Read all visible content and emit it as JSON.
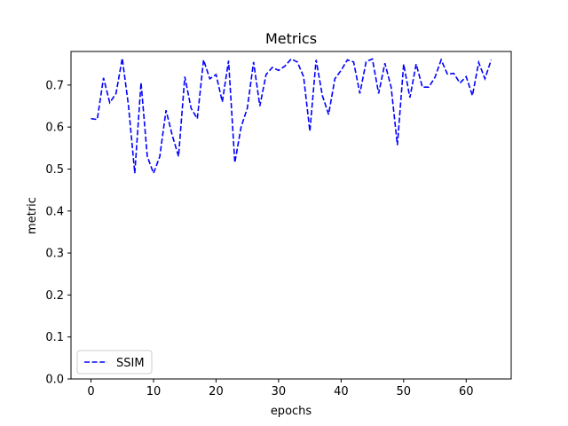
{
  "chart_data": {
    "type": "line",
    "title": "Metrics",
    "xlabel": "epochs",
    "ylabel": "metric",
    "xlim": [
      -3.2,
      67.2
    ],
    "ylim": [
      0.0,
      0.78
    ],
    "xticks": [
      0,
      10,
      20,
      30,
      40,
      50,
      60
    ],
    "xtick_labels": [
      "0",
      "10",
      "20",
      "30",
      "40",
      "50",
      "60"
    ],
    "yticks": [
      0.0,
      0.1,
      0.2,
      0.3,
      0.4,
      0.5,
      0.6,
      0.7
    ],
    "ytick_labels": [
      "0.0",
      "0.1",
      "0.2",
      "0.3",
      "0.4",
      "0.5",
      "0.6",
      "0.7"
    ],
    "grid": false,
    "legend_position": "lower-left",
    "series": [
      {
        "name": "SSIM",
        "color": "#0000ff",
        "linestyle": "dashed",
        "x": [
          0,
          1,
          2,
          3,
          4,
          5,
          6,
          7,
          8,
          9,
          10,
          11,
          12,
          13,
          14,
          15,
          16,
          17,
          18,
          19,
          20,
          21,
          22,
          23,
          24,
          25,
          26,
          27,
          28,
          29,
          30,
          31,
          32,
          33,
          34,
          35,
          36,
          37,
          38,
          39,
          40,
          41,
          42,
          43,
          44,
          45,
          46,
          47,
          48,
          49,
          50,
          51,
          52,
          53,
          54,
          55,
          56,
          57,
          58,
          59,
          60,
          61,
          62,
          63,
          64
        ],
        "values": [
          0.62,
          0.618,
          0.717,
          0.658,
          0.68,
          0.764,
          0.65,
          0.49,
          0.706,
          0.53,
          0.49,
          0.53,
          0.64,
          0.58,
          0.53,
          0.72,
          0.645,
          0.62,
          0.76,
          0.715,
          0.725,
          0.66,
          0.758,
          0.515,
          0.6,
          0.645,
          0.755,
          0.65,
          0.725,
          0.742,
          0.735,
          0.745,
          0.762,
          0.755,
          0.72,
          0.59,
          0.76,
          0.675,
          0.63,
          0.715,
          0.735,
          0.76,
          0.755,
          0.68,
          0.756,
          0.762,
          0.68,
          0.752,
          0.695,
          0.557,
          0.75,
          0.67,
          0.75,
          0.695,
          0.695,
          0.718,
          0.76,
          0.726,
          0.728,
          0.705,
          0.72,
          0.675,
          0.754,
          0.715,
          0.76
        ]
      }
    ]
  }
}
